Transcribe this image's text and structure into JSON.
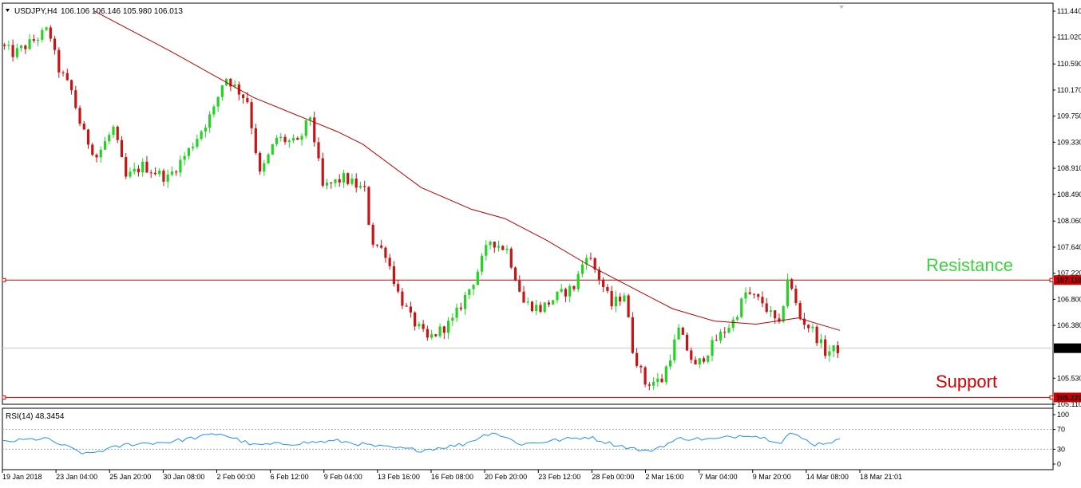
{
  "header": {
    "symbol": "USDJPY,H4",
    "ohlc": "106.106 106.146 105.980 106.013"
  },
  "chart_data": [
    {
      "type": "candlestick",
      "title": "USDJPY,H4",
      "ohlc_last": {
        "open": 106.106,
        "high": 106.146,
        "low": 105.98,
        "close": 106.013
      },
      "ylim": [
        105.11,
        111.44
      ],
      "y_ticks": [
        "111.440",
        "111.020",
        "110.590",
        "110.170",
        "109.750",
        "109.330",
        "108.910",
        "108.490",
        "108.060",
        "107.640",
        "107.220",
        "106.800",
        "106.380",
        "105.530",
        "105.110"
      ],
      "x_ticks": [
        "19 Jan 2018",
        "23 Jan 04:00",
        "25 Jan 20:00",
        "30 Jan 08:00",
        "2 Feb 00:00",
        "6 Feb 12:00",
        "9 Feb 04:00",
        "13 Feb 16:00",
        "16 Feb 08:00",
        "20 Feb 20:00",
        "23 Feb 12:00",
        "28 Feb 00:00",
        "2 Mar 16:00",
        "7 Mar 04:00",
        "9 Mar 20:00",
        "14 Mar 08:00",
        "18 Mar 21:01"
      ],
      "price_levels": [
        {
          "name": "Resistance",
          "value": 107.11,
          "label": "107.110",
          "color": "#d00000"
        },
        {
          "name": "Support",
          "value": 105.22,
          "label": "105.220",
          "color": "#d00000"
        },
        {
          "name": "current",
          "value": 106.013,
          "label": "106.013",
          "color": "#000000"
        }
      ],
      "annotations": {
        "resistance": "Resistance",
        "support": "Support"
      },
      "colors": {
        "bull": "#22d422",
        "bear": "#c81414",
        "ma": "#b80000",
        "resistance_text": "#3cd23c",
        "support_text": "#d00000"
      },
      "grid": false,
      "anchors": [
        {
          "x": 0,
          "v": 110.9
        },
        {
          "x": 0.016,
          "v": 110.75
        },
        {
          "x": 0.038,
          "v": 110.95
        },
        {
          "x": 0.058,
          "v": 111.15
        },
        {
          "x": 0.068,
          "v": 110.55
        },
        {
          "x": 0.085,
          "v": 110.15
        },
        {
          "x": 0.098,
          "v": 109.5
        },
        {
          "x": 0.115,
          "v": 109.1
        },
        {
          "x": 0.135,
          "v": 109.55
        },
        {
          "x": 0.15,
          "v": 108.75
        },
        {
          "x": 0.17,
          "v": 108.95
        },
        {
          "x": 0.2,
          "v": 108.75
        },
        {
          "x": 0.225,
          "v": 109.2
        },
        {
          "x": 0.255,
          "v": 109.85
        },
        {
          "x": 0.268,
          "v": 110.4
        },
        {
          "x": 0.295,
          "v": 110.0
        },
        {
          "x": 0.31,
          "v": 108.8
        },
        {
          "x": 0.33,
          "v": 109.4
        },
        {
          "x": 0.355,
          "v": 109.3
        },
        {
          "x": 0.37,
          "v": 109.75
        },
        {
          "x": 0.385,
          "v": 108.6
        },
        {
          "x": 0.41,
          "v": 108.75
        },
        {
          "x": 0.435,
          "v": 108.55
        },
        {
          "x": 0.443,
          "v": 107.75
        },
        {
          "x": 0.46,
          "v": 107.55
        },
        {
          "x": 0.475,
          "v": 106.9
        },
        {
          "x": 0.49,
          "v": 106.5
        },
        {
          "x": 0.51,
          "v": 106.15
        },
        {
          "x": 0.54,
          "v": 106.45
        },
        {
          "x": 0.565,
          "v": 107.1
        },
        {
          "x": 0.585,
          "v": 107.75
        },
        {
          "x": 0.605,
          "v": 107.6
        },
        {
          "x": 0.625,
          "v": 106.75
        },
        {
          "x": 0.645,
          "v": 106.65
        },
        {
          "x": 0.665,
          "v": 106.85
        },
        {
          "x": 0.685,
          "v": 107.0
        },
        {
          "x": 0.7,
          "v": 107.55
        },
        {
          "x": 0.715,
          "v": 107.15
        },
        {
          "x": 0.73,
          "v": 106.7
        },
        {
          "x": 0.745,
          "v": 106.9
        },
        {
          "x": 0.755,
          "v": 106.0
        },
        {
          "x": 0.77,
          "v": 105.45
        },
        {
          "x": 0.79,
          "v": 105.5
        },
        {
          "x": 0.81,
          "v": 106.3
        },
        {
          "x": 0.83,
          "v": 105.7
        },
        {
          "x": 0.855,
          "v": 106.15
        },
        {
          "x": 0.875,
          "v": 106.45
        },
        {
          "x": 0.89,
          "v": 106.9
        },
        {
          "x": 0.91,
          "v": 106.75
        },
        {
          "x": 0.93,
          "v": 106.35
        },
        {
          "x": 0.94,
          "v": 107.15
        },
        {
          "x": 0.955,
          "v": 106.5
        },
        {
          "x": 0.97,
          "v": 106.3
        },
        {
          "x": 0.985,
          "v": 105.95
        },
        {
          "x": 1.0,
          "v": 106.0
        }
      ],
      "moving_average": [
        {
          "x": 0.11,
          "v": 111.44
        },
        {
          "x": 0.2,
          "v": 110.8
        },
        {
          "x": 0.3,
          "v": 110.05
        },
        {
          "x": 0.4,
          "v": 109.5
        },
        {
          "x": 0.43,
          "v": 109.3
        },
        {
          "x": 0.5,
          "v": 108.6
        },
        {
          "x": 0.56,
          "v": 108.25
        },
        {
          "x": 0.6,
          "v": 108.1
        },
        {
          "x": 0.65,
          "v": 107.75
        },
        {
          "x": 0.7,
          "v": 107.35
        },
        {
          "x": 0.75,
          "v": 107.0
        },
        {
          "x": 0.8,
          "v": 106.65
        },
        {
          "x": 0.85,
          "v": 106.45
        },
        {
          "x": 0.9,
          "v": 106.4
        },
        {
          "x": 0.95,
          "v": 106.5
        },
        {
          "x": 1.0,
          "v": 106.3
        }
      ]
    },
    {
      "type": "line",
      "title": "RSI(14) 48.3454",
      "ylim": [
        0,
        100
      ],
      "y_ticks": [
        "100",
        "70",
        "30",
        "0"
      ],
      "levels": [
        70,
        30
      ],
      "color": "#1e90ff",
      "anchors": [
        {
          "x": 0,
          "v": 45
        },
        {
          "x": 0.05,
          "v": 52
        },
        {
          "x": 0.1,
          "v": 20
        },
        {
          "x": 0.15,
          "v": 40
        },
        {
          "x": 0.2,
          "v": 45
        },
        {
          "x": 0.26,
          "v": 62
        },
        {
          "x": 0.3,
          "v": 38
        },
        {
          "x": 0.35,
          "v": 42
        },
        {
          "x": 0.4,
          "v": 47
        },
        {
          "x": 0.45,
          "v": 35
        },
        {
          "x": 0.5,
          "v": 28
        },
        {
          "x": 0.55,
          "v": 40
        },
        {
          "x": 0.585,
          "v": 65
        },
        {
          "x": 0.62,
          "v": 40
        },
        {
          "x": 0.66,
          "v": 48
        },
        {
          "x": 0.7,
          "v": 55
        },
        {
          "x": 0.73,
          "v": 40
        },
        {
          "x": 0.77,
          "v": 25
        },
        {
          "x": 0.81,
          "v": 52
        },
        {
          "x": 0.85,
          "v": 50
        },
        {
          "x": 0.89,
          "v": 60
        },
        {
          "x": 0.93,
          "v": 45
        },
        {
          "x": 0.94,
          "v": 63
        },
        {
          "x": 0.97,
          "v": 40
        },
        {
          "x": 1.0,
          "v": 48
        }
      ]
    }
  ]
}
